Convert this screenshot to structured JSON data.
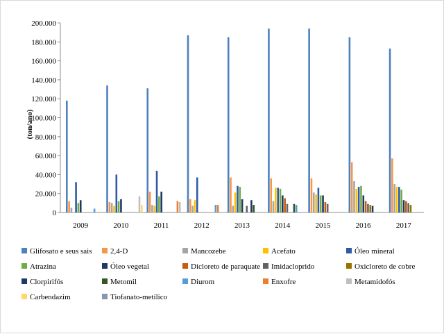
{
  "chart_data": {
    "type": "bar",
    "ylabel": "(ton/ano)",
    "ylim": [
      0,
      200000
    ],
    "ytick_labels": [
      "0",
      "20.000",
      "40.000",
      "60.000",
      "80.000",
      "100.000",
      "120.000",
      "140.000",
      "160.000",
      "180.000",
      "200.000"
    ],
    "categories": [
      "2009",
      "2010",
      "2011",
      "2012",
      "2013",
      "2014",
      "2015",
      "2016",
      "2017"
    ],
    "legend_position": "bottom",
    "series": [
      {
        "name": "Glifosato e seus sais",
        "color": "#4f81bd",
        "values": [
          118000,
          134000,
          131000,
          187000,
          185000,
          194000,
          194000,
          185000,
          173000
        ]
      },
      {
        "name": "2,4-D",
        "color": "#f79646",
        "values": [
          12000,
          11000,
          22000,
          14000,
          37000,
          36000,
          36000,
          53000,
          57000
        ]
      },
      {
        "name": "Mancozebe",
        "color": "#a5a5a5",
        "values": [
          5000,
          10000,
          8000,
          7000,
          7000,
          12000,
          21000,
          33000,
          30000
        ]
      },
      {
        "name": "Acefato",
        "color": "#ffc000",
        "values": [
          null,
          7000,
          7000,
          13000,
          21000,
          26000,
          19000,
          25000,
          27000
        ]
      },
      {
        "name": "Óleo mineral",
        "color": "#2e5aa8",
        "values": [
          32000,
          40000,
          44000,
          37000,
          28000,
          26000,
          26000,
          27000,
          27000
        ]
      },
      {
        "name": "Atrazina",
        "color": "#70ad47",
        "values": [
          10000,
          12000,
          17000,
          null,
          27000,
          25000,
          18000,
          28000,
          24000
        ]
      },
      {
        "name": "Óleo vegetal",
        "color": "#1f3864",
        "values": [
          13000,
          14000,
          22000,
          null,
          14000,
          18000,
          18000,
          18000,
          13000
        ]
      },
      {
        "name": "Dicloreto de paraquate",
        "color": "#c55a11",
        "values": [
          null,
          null,
          null,
          null,
          null,
          15000,
          11000,
          12000,
          12000
        ]
      },
      {
        "name": "Imidacloprido",
        "color": "#636363",
        "values": [
          null,
          null,
          null,
          null,
          7000,
          9000,
          9000,
          9000,
          10000
        ]
      },
      {
        "name": "Oxicloreto de cobre",
        "color": "#997300",
        "values": [
          null,
          null,
          null,
          null,
          null,
          null,
          null,
          8000,
          8000
        ]
      },
      {
        "name": "Clorpirifós",
        "color": "#203864",
        "values": [
          null,
          null,
          null,
          null,
          13000,
          null,
          null,
          7000,
          null
        ]
      },
      {
        "name": "Metomil",
        "color": "#375623",
        "values": [
          null,
          null,
          null,
          null,
          8000,
          9000,
          null,
          null,
          null
        ]
      },
      {
        "name": "Diurom",
        "color": "#5b9bd5",
        "values": [
          4000,
          null,
          null,
          8000,
          null,
          8000,
          null,
          null,
          null
        ]
      },
      {
        "name": "Enxofre",
        "color": "#ed7d31",
        "values": [
          null,
          null,
          12000,
          8000,
          null,
          null,
          null,
          null,
          null
        ]
      },
      {
        "name": "Metamidofós",
        "color": "#bfbfbf",
        "values": [
          null,
          17000,
          11000,
          null,
          null,
          null,
          null,
          null,
          null
        ]
      },
      {
        "name": "Carbendazim",
        "color": "#ffd966",
        "values": [
          null,
          8000,
          null,
          null,
          null,
          null,
          null,
          null,
          null
        ]
      },
      {
        "name": "Tiofanato-metílico",
        "color": "#8496b0",
        "values": [
          null,
          null,
          null,
          null,
          null,
          null,
          null,
          null,
          null
        ]
      }
    ]
  }
}
